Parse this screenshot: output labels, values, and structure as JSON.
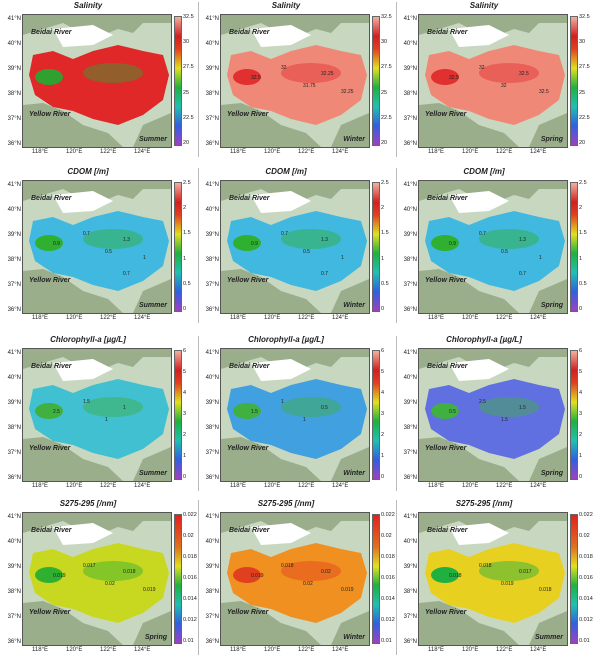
{
  "lat_labels": [
    "41°N",
    "40°N",
    "39°N",
    "38°N",
    "37°N",
    "36°N"
  ],
  "lon_labels": [
    "118°E",
    "120°E",
    "122°E",
    "124°E"
  ],
  "rivers": {
    "north": "Beidai River",
    "south": "Yellow River"
  },
  "rows": [
    {
      "title": "Salinity",
      "ticks": [
        "32.5",
        "30",
        "27.5",
        "25",
        "22.5",
        "20"
      ],
      "panels": [
        {
          "season": "Summer",
          "fill": "#e02828",
          "hot": "#30a030",
          "labels": []
        },
        {
          "season": "Winter",
          "fill": "#f08878",
          "hot": "#e03030",
          "labels": [
            "32.5",
            "32",
            "31.75",
            "32.25",
            "32.25"
          ]
        },
        {
          "season": "Spring",
          "fill": "#f08878",
          "hot": "#e03030",
          "labels": [
            "32.5",
            "32",
            "32",
            "32.5",
            "32.5"
          ]
        }
      ]
    },
    {
      "title": "CDOM [/m]",
      "ticks": [
        "2.5",
        "2",
        "1.5",
        "1",
        "0.5",
        "0"
      ],
      "panels": [
        {
          "season": "Summer",
          "fill": "#40b8e0",
          "hot": "#30b030",
          "labels": [
            "0.9",
            "0.7",
            "0.5",
            "1.3",
            "1",
            "0.7"
          ]
        },
        {
          "season": "Winter",
          "fill": "#40b8e0",
          "hot": "#30b030",
          "labels": [
            "0.9",
            "0.7",
            "0.5",
            "1.3",
            "1",
            "0.7"
          ]
        },
        {
          "season": "Spring",
          "fill": "#40b8e0",
          "hot": "#30b030",
          "labels": [
            "0.9",
            "0.7",
            "0.5",
            "1.3",
            "1",
            "0.7"
          ]
        }
      ]
    },
    {
      "title": "Chlorophyll-a [µg/L]",
      "ticks": [
        "6",
        "5",
        "4",
        "3",
        "2",
        "1",
        "0"
      ],
      "panels": [
        {
          "season": "Summer",
          "fill": "#40c0d0",
          "hot": "#40b040",
          "labels": [
            "2.5",
            "1.5",
            "1",
            "1"
          ]
        },
        {
          "season": "Winter",
          "fill": "#40a0e0",
          "hot": "#40b040",
          "labels": [
            "1.5",
            "1",
            "1",
            "0.5"
          ]
        },
        {
          "season": "Spring",
          "fill": "#6070e0",
          "hot": "#40b040",
          "labels": [
            "0.5",
            "2.5",
            "1.5",
            "1.5"
          ]
        }
      ]
    },
    {
      "title": "S275-295 [/nm]",
      "ticks": [
        "0.022",
        "0.02",
        "0.018",
        "0.016",
        "0.014",
        "0.012",
        "0.01"
      ],
      "panels": [
        {
          "season": "Spring",
          "fill": "#c8d820",
          "hot": "#30b030",
          "labels": [
            "0.019",
            "0.017",
            "0.02",
            "0.018",
            "0.019"
          ]
        },
        {
          "season": "Winter",
          "fill": "#f09020",
          "hot": "#e04020",
          "labels": [
            "0.019",
            "0.018",
            "0.02",
            "0.02",
            "0.019"
          ]
        },
        {
          "season": "Summer",
          "fill": "#e8d020",
          "hot": "#20b040",
          "labels": [
            "0.018",
            "0.018",
            "0.019",
            "0.017",
            "0.018"
          ]
        }
      ]
    }
  ]
}
